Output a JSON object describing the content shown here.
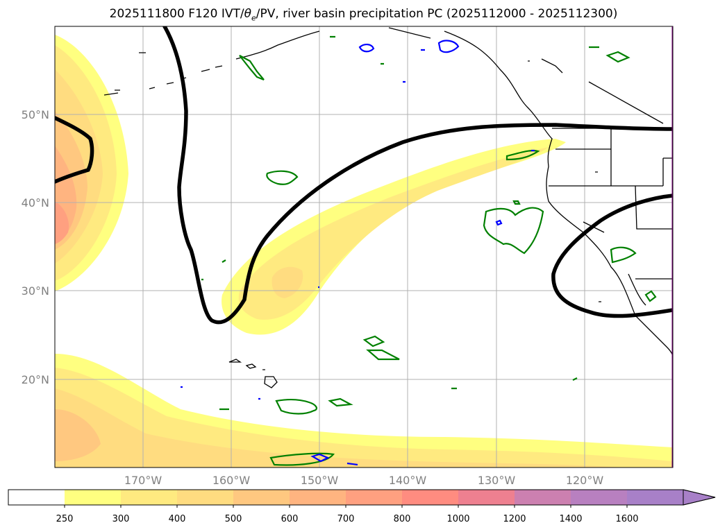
{
  "title": {
    "prefix": "2025111800 F120 IVT/",
    "theta": "θ",
    "theta_sub": "e",
    "suffix": "/PV, river basin precipitation PC (2025112000 - 2025112300)"
  },
  "map": {
    "lat_labels": [
      "50°N",
      "40°N",
      "30°N",
      "20°N"
    ],
    "lon_labels": [
      "170°W",
      "160°W",
      "150°W",
      "140°W",
      "130°W",
      "120°W"
    ],
    "grid": true
  },
  "colorbar": {
    "tick_labels": [
      "250",
      "300",
      "400",
      "500",
      "600",
      "700",
      "800",
      "1000",
      "1200",
      "1400",
      "1600"
    ],
    "colors": [
      "#ffffff",
      "#ffff80",
      "#ffea80",
      "#ffdc80",
      "#ffc880",
      "#ffb480",
      "#ffa080",
      "#ff8c80",
      "#ee8090",
      "#cc80b0",
      "#b880c0",
      "#a880c8"
    ],
    "extend": "max"
  },
  "styles": {
    "land_edge": "#000000",
    "pv_contour": "#000000",
    "precip_pc_positive": "#008000",
    "precip_pc_negative": "#0000ff",
    "grid": "#b0b0b0"
  }
}
